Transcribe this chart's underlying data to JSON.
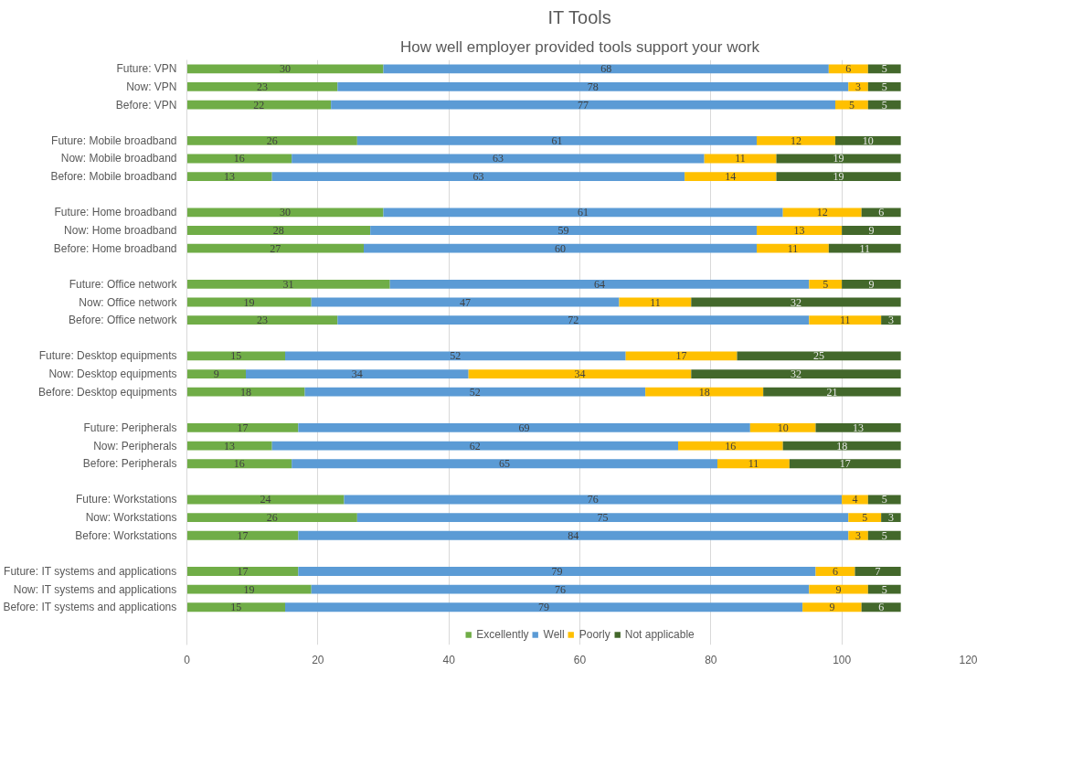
{
  "chart_data": {
    "type": "bar",
    "orientation": "horizontal",
    "stacked": true,
    "title": "IT Tools",
    "subtitle": "How well employer provided tools support your work",
    "categories": [
      "Future: VPN",
      "Now: VPN",
      "Before: VPN",
      null,
      "Future: Mobile broadband",
      "Now: Mobile broadband",
      "Before: Mobile broadband",
      null,
      "Future: Home broadband",
      "Now: Home broadband",
      "Before: Home broadband",
      null,
      "Future: Office network",
      "Now: Office network",
      "Before: Office network",
      null,
      "Future: Desktop equipments",
      "Now: Desktop equipments",
      "Before: Desktop equipments",
      null,
      "Future: Peripherals",
      "Now: Peripherals",
      "Before: Peripherals",
      null,
      "Future: Workstations",
      "Now: Workstations",
      "Before: Workstations",
      null,
      "Future: IT systems and applications",
      "Now: IT systems and applications",
      "Before: IT systems and applications"
    ],
    "series": [
      {
        "name": "Excellently",
        "color": "#70ad47",
        "values": [
          30,
          23,
          22,
          null,
          26,
          16,
          13,
          null,
          30,
          28,
          27,
          null,
          31,
          19,
          23,
          null,
          15,
          9,
          18,
          null,
          17,
          13,
          16,
          null,
          24,
          26,
          17,
          null,
          17,
          19,
          15
        ]
      },
      {
        "name": "Well",
        "color": "#5b9bd5",
        "values": [
          68,
          78,
          77,
          null,
          61,
          63,
          63,
          null,
          61,
          59,
          60,
          null,
          64,
          47,
          72,
          null,
          52,
          34,
          52,
          null,
          69,
          62,
          65,
          null,
          76,
          75,
          84,
          null,
          79,
          76,
          79
        ]
      },
      {
        "name": "Poorly",
        "color": "#ffc000",
        "values": [
          6,
          3,
          5,
          null,
          12,
          11,
          14,
          null,
          12,
          13,
          11,
          null,
          5,
          11,
          11,
          null,
          17,
          34,
          18,
          null,
          10,
          16,
          11,
          null,
          4,
          5,
          3,
          null,
          6,
          9,
          9
        ]
      },
      {
        "name": "Not applicable",
        "color": "#43682b",
        "values": [
          5,
          5,
          5,
          null,
          10,
          19,
          19,
          null,
          6,
          9,
          11,
          null,
          9,
          32,
          3,
          null,
          25,
          32,
          21,
          null,
          13,
          18,
          17,
          null,
          5,
          3,
          5,
          null,
          7,
          5,
          6
        ]
      }
    ],
    "xlim": [
      0,
      120
    ],
    "xticks": [
      0,
      20,
      40,
      60,
      80,
      100,
      120
    ],
    "grid": "x",
    "legend": "bottom",
    "data_labels": true
  }
}
